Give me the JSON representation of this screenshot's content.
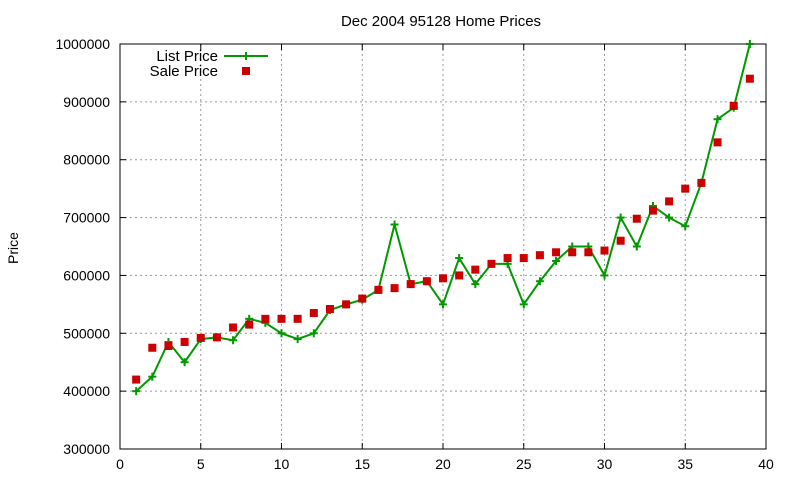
{
  "chart_data": {
    "type": "line",
    "title": "Dec 2004 95128 Home Prices",
    "xlabel": "",
    "ylabel": "Price",
    "xlim": [
      0,
      40
    ],
    "ylim": [
      300000,
      1000000
    ],
    "xticks": [
      0,
      5,
      10,
      15,
      20,
      25,
      30,
      35,
      40
    ],
    "yticks": [
      300000,
      400000,
      500000,
      600000,
      700000,
      800000,
      900000,
      1000000
    ],
    "grid": true,
    "legend_position": "top-left",
    "series": [
      {
        "name": "List Price",
        "style": "line-plus",
        "color": "#009900",
        "x": [
          1,
          2,
          3,
          4,
          5,
          6,
          7,
          8,
          9,
          10,
          11,
          12,
          13,
          14,
          15,
          16,
          17,
          18,
          19,
          20,
          21,
          22,
          23,
          24,
          25,
          26,
          27,
          28,
          29,
          30,
          31,
          32,
          33,
          34,
          35,
          36,
          37,
          38,
          39
        ],
        "y": [
          400000,
          425000,
          485000,
          450000,
          490000,
          493000,
          488000,
          525000,
          518000,
          500000,
          490000,
          500000,
          540000,
          550000,
          558000,
          575000,
          688000,
          585000,
          590000,
          550000,
          630000,
          585000,
          620000,
          620000,
          550000,
          590000,
          625000,
          650000,
          650000,
          600000,
          700000,
          650000,
          720000,
          700000,
          685000,
          760000,
          870000,
          890000,
          1000000
        ]
      },
      {
        "name": "Sale Price",
        "style": "square-markers",
        "color": "#cc0000",
        "x": [
          1,
          2,
          3,
          4,
          5,
          6,
          7,
          8,
          9,
          10,
          11,
          12,
          13,
          14,
          15,
          16,
          17,
          18,
          19,
          20,
          21,
          22,
          23,
          24,
          25,
          26,
          27,
          28,
          29,
          30,
          31,
          32,
          33,
          34,
          35,
          36,
          37,
          38,
          39
        ],
        "y": [
          420000,
          475000,
          478000,
          485000,
          492000,
          493000,
          510000,
          515000,
          525000,
          525000,
          525000,
          535000,
          542000,
          550000,
          560000,
          575000,
          578000,
          585000,
          590000,
          595000,
          600000,
          610000,
          620000,
          630000,
          630000,
          635000,
          640000,
          640000,
          640000,
          643000,
          660000,
          698000,
          712000,
          728000,
          750000,
          760000,
          830000,
          893000,
          940000
        ]
      }
    ]
  }
}
